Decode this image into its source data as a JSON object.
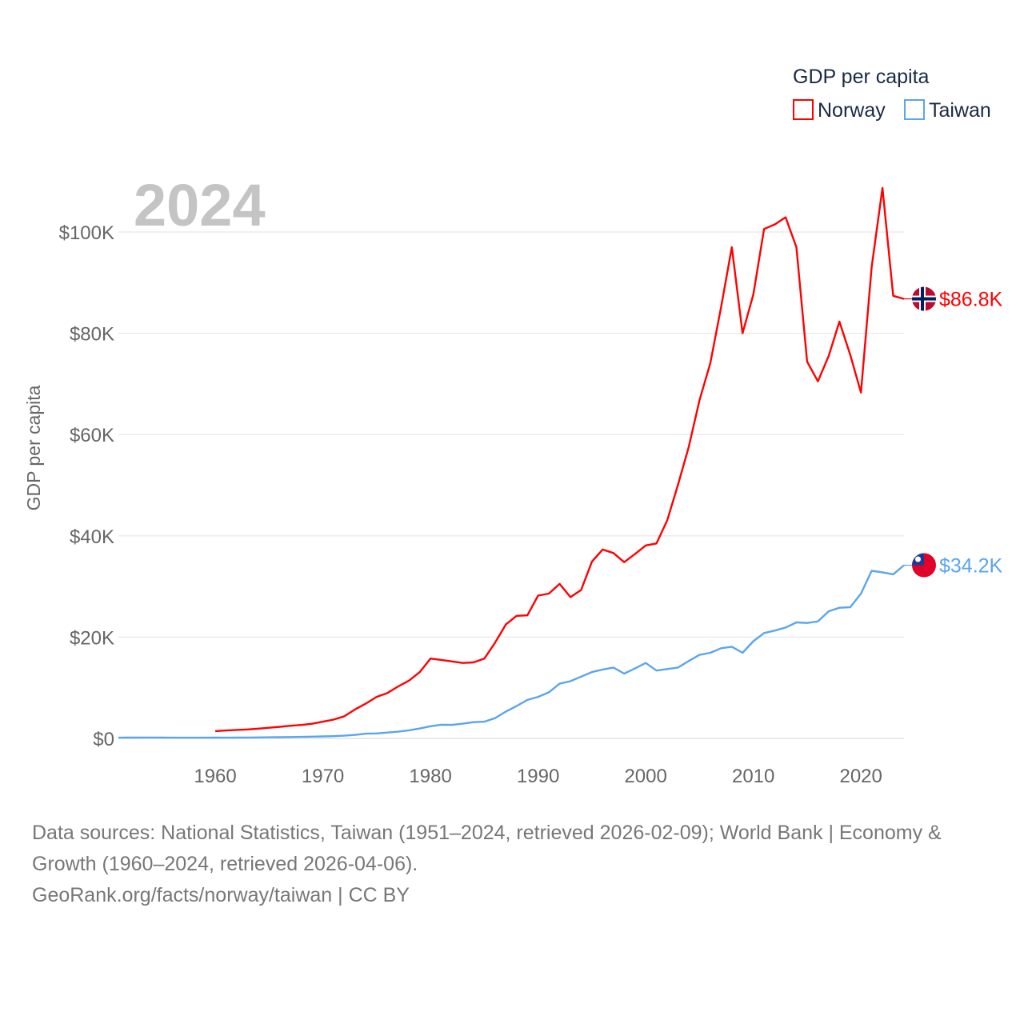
{
  "chart_data": {
    "type": "line",
    "title": "GDP per capita",
    "ylabel": "GDP per capita",
    "xlabel": "",
    "year_label": "2024",
    "ylim": [
      0,
      112
    ],
    "xlim": [
      1951,
      2024
    ],
    "grid": true,
    "legend_placement": "top-right",
    "y_ticks": [
      0,
      20,
      40,
      60,
      80,
      100
    ],
    "y_tick_labels": [
      "$0",
      "$20K",
      "$40K",
      "$60K",
      "$80K",
      "$100K"
    ],
    "x_ticks": [
      1960,
      1970,
      1980,
      1990,
      2000,
      2010,
      2020
    ],
    "x_tick_labels": [
      "1960",
      "1970",
      "1980",
      "1990",
      "2000",
      "2010",
      "2020"
    ],
    "units": "thousand USD",
    "series": [
      {
        "name": "Norway",
        "color": "#ff0000",
        "end_label": "$86.8K",
        "flag": "norway-flag",
        "start_year": 1960,
        "values": [
          1.44,
          1.56,
          1.67,
          1.77,
          1.92,
          2.1,
          2.29,
          2.5,
          2.65,
          2.89,
          3.3,
          3.72,
          4.38,
          5.73,
          6.89,
          8.2,
          8.97,
          10.27,
          11.4,
          13.1,
          15.77,
          15.5,
          15.2,
          14.9,
          15.0,
          15.75,
          18.9,
          22.5,
          24.2,
          24.3,
          28.2,
          28.6,
          30.5,
          27.9,
          29.3,
          34.9,
          37.3,
          36.6,
          34.8,
          36.4,
          38.1,
          38.5,
          43.1,
          50.1,
          57.6,
          66.8,
          74.1,
          85.1,
          97.0,
          80.0,
          87.7,
          100.6,
          101.5,
          102.9,
          97.0,
          74.4,
          70.5,
          75.5,
          82.3,
          75.8,
          68.3,
          93.1,
          108.7,
          87.4,
          86.8
        ]
      },
      {
        "name": "Taiwan",
        "color": "#5aa5ee",
        "end_label": "$34.2K",
        "flag": "taiwan-flag",
        "start_year": 1951,
        "values": [
          0.15,
          0.16,
          0.16,
          0.17,
          0.16,
          0.15,
          0.14,
          0.15,
          0.15,
          0.16,
          0.15,
          0.16,
          0.17,
          0.19,
          0.22,
          0.24,
          0.27,
          0.3,
          0.34,
          0.4,
          0.45,
          0.53,
          0.7,
          0.93,
          0.98,
          1.16,
          1.33,
          1.6,
          1.96,
          2.4,
          2.7,
          2.67,
          2.9,
          3.2,
          3.3,
          4.0,
          5.3,
          6.4,
          7.6,
          8.2,
          9.1,
          10.8,
          11.3,
          12.2,
          13.1,
          13.6,
          14.0,
          12.8,
          13.8,
          14.9,
          13.4,
          13.7,
          14.0,
          15.3,
          16.5,
          16.9,
          17.8,
          18.1,
          16.9,
          19.2,
          20.8,
          21.3,
          21.9,
          22.9,
          22.8,
          23.1,
          25.1,
          25.8,
          25.9,
          28.6,
          33.1,
          32.8,
          32.4,
          34.2
        ]
      }
    ]
  },
  "footer": {
    "line1": "Data sources: National Statistics, Taiwan (1951–2024, retrieved 2026-02-09); World Bank | Economy &",
    "line2": "Growth (1960–2024, retrieved 2026-04-06).",
    "line3": "GeoRank.org/facts/norway/taiwan | CC BY"
  }
}
